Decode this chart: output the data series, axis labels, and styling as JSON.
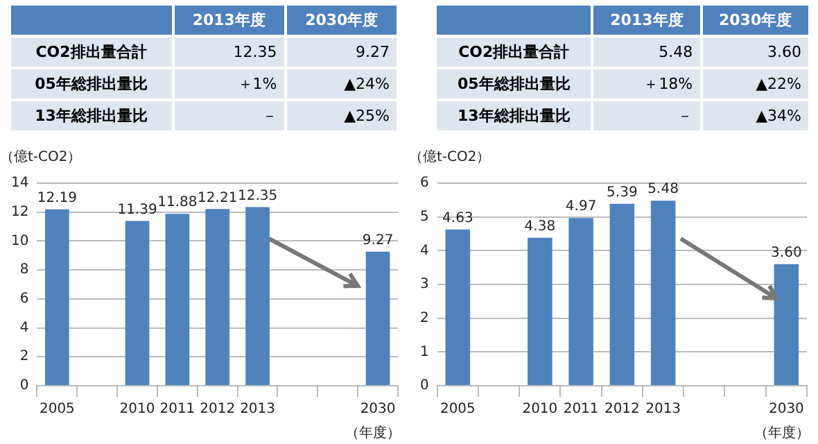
{
  "chart_data": [
    {
      "type": "bar",
      "ylabel": "（億t-CO2）",
      "xlabel": "（年度）",
      "categories": [
        "2005",
        null,
        "2010",
        "2011",
        "2012",
        "2013",
        null,
        null,
        "2030"
      ],
      "values": [
        12.19,
        null,
        11.39,
        11.88,
        12.21,
        12.35,
        null,
        null,
        9.27
      ],
      "color": "#4f81bd",
      "ylim": [
        0,
        14
      ],
      "yticks": [
        0,
        2,
        4,
        6,
        8,
        10,
        12,
        14
      ],
      "grid": "y",
      "legend": false,
      "value_labels": [
        "12.19",
        null,
        "11.39",
        "11.88",
        "12.21",
        "12.35",
        null,
        null,
        "9.27"
      ],
      "annotations": [
        "2013年度",
        "2030年度",
        "CO2排出量合計",
        "12.35",
        "9.27",
        "05年総排出量比",
        "＋1%",
        "▲24%",
        "13年総排出量比",
        "－",
        "▲25%"
      ]
    },
    {
      "type": "bar",
      "ylabel": "（億t-CO2）",
      "xlabel": "（年度）",
      "categories": [
        "2005",
        null,
        "2010",
        "2011",
        "2012",
        "2013",
        null,
        null,
        "2030"
      ],
      "values": [
        4.63,
        null,
        4.38,
        4.97,
        5.39,
        5.48,
        null,
        null,
        3.6
      ],
      "color": "#4f81bd",
      "ylim": [
        0,
        6
      ],
      "yticks": [
        0,
        1,
        2,
        3,
        4,
        5,
        6
      ],
      "grid": "y",
      "legend": false,
      "value_labels": [
        "4.63",
        null,
        "4.38",
        "4.97",
        "5.39",
        "5.48",
        null,
        null,
        "3.60"
      ],
      "annotations": [
        "2013年度",
        "2030年度",
        "CO2排出量合計",
        "5.48",
        "3.60",
        "05年総排出量比",
        "＋18%",
        "▲22%",
        "13年総排出量比",
        "－",
        "▲34%"
      ]
    }
  ]
}
